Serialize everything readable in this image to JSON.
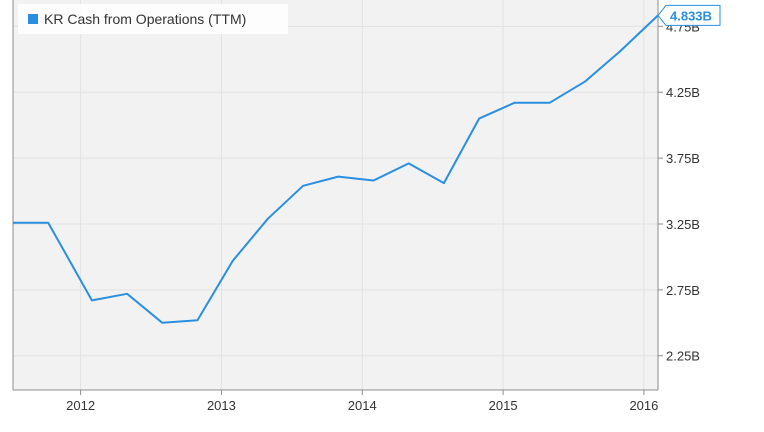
{
  "chart_data": {
    "type": "line",
    "colors": {
      "series": "#2a8fe0",
      "plot_background": "#f2f2f2",
      "grid": "#e2e2e2",
      "axis": "#8c8c8c",
      "text": "#333333",
      "last_value_border": "#2a8fe0"
    },
    "legend": {
      "placement": "top-left",
      "entries": [
        "KR Cash from Operations (TTM)"
      ]
    },
    "grid": true,
    "x_ticks": [
      "2012",
      "2013",
      "2014",
      "2015",
      "2016"
    ],
    "x_tick_values": [
      2012.0,
      2013.0,
      2014.0,
      2015.0,
      2016.0
    ],
    "y_ticks": [
      "2.25B",
      "2.75B",
      "3.25B",
      "3.75B",
      "4.25B",
      "4.75B"
    ],
    "y_tick_values": [
      2.25,
      2.75,
      3.25,
      3.75,
      4.25,
      4.75
    ],
    "xlim": [
      2011.52,
      2016.1
    ],
    "ylim": [
      1.99,
      4.95
    ],
    "last_value_label": "4.833B",
    "series": [
      {
        "name": "KR Cash from Operations (TTM)",
        "x": [
          2011.52,
          2011.77,
          2012.08,
          2012.33,
          2012.58,
          2012.83,
          2013.08,
          2013.33,
          2013.58,
          2013.83,
          2014.08,
          2014.33,
          2014.58,
          2014.83,
          2015.08,
          2015.33,
          2015.58,
          2015.83,
          2016.1
        ],
        "y": [
          3.26,
          3.26,
          2.67,
          2.72,
          2.5,
          2.52,
          2.97,
          3.29,
          3.54,
          3.61,
          3.58,
          3.71,
          3.56,
          4.05,
          4.17,
          4.17,
          4.33,
          4.56,
          4.833
        ]
      }
    ]
  }
}
